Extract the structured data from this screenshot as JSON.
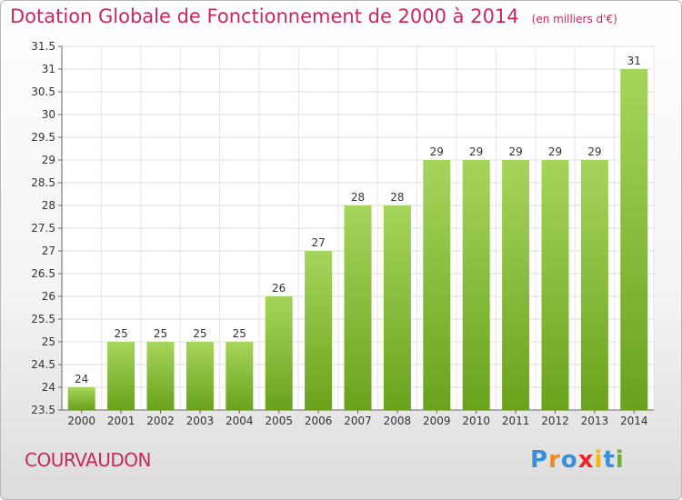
{
  "title": "Dotation Globale de Fonctionnement de 2000 à 2014",
  "unit": "(en milliers d'€)",
  "commune": "COURVAUDON",
  "logo": {
    "text": "Proxiti",
    "letters": [
      "P",
      "r",
      "o",
      "x",
      "i",
      "t",
      "i"
    ],
    "colors": [
      "#3a8fd6",
      "#f08a1c",
      "#3a8fd6",
      "#e8262b",
      "#f5b800",
      "#3a8fd6",
      "#6ab42d"
    ]
  },
  "colors": {
    "bar_light": "#a6d55c",
    "bar_dark": "#6aa21c",
    "title": "#c8285a"
  },
  "chart_data": {
    "type": "bar",
    "categories": [
      "2000",
      "2001",
      "2002",
      "2003",
      "2004",
      "2005",
      "2006",
      "2007",
      "2008",
      "2009",
      "2010",
      "2011",
      "2012",
      "2013",
      "2014"
    ],
    "values": [
      24,
      25,
      25,
      25,
      25,
      26,
      27,
      28,
      28,
      29,
      29,
      29,
      29,
      29,
      31
    ],
    "ylim": [
      23.5,
      31.5
    ],
    "yticks": [
      23.5,
      24,
      24.5,
      25,
      25.5,
      26,
      26.5,
      27,
      27.5,
      28,
      28.5,
      29,
      29.5,
      30,
      30.5,
      31,
      31.5
    ],
    "grid": true
  }
}
